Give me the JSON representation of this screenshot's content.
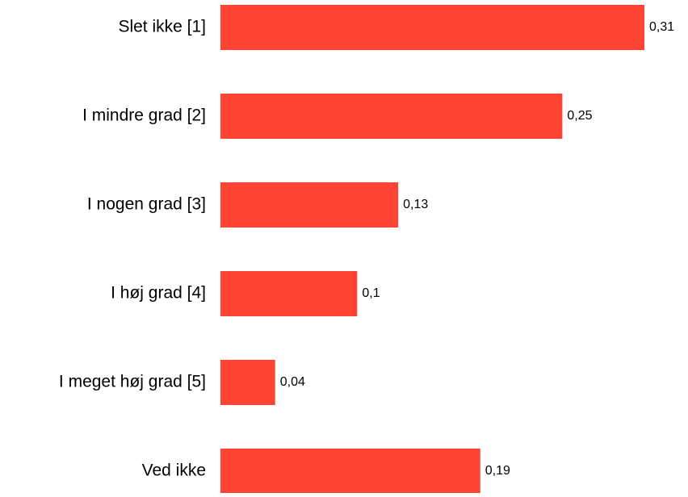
{
  "chart_data": {
    "type": "bar",
    "orientation": "horizontal",
    "categories": [
      "Slet ikke [1]",
      "I mindre grad [2]",
      "I nogen grad [3]",
      "I høj grad [4]",
      "I meget høj grad [5]",
      "Ved ikke"
    ],
    "values": [
      0.31,
      0.25,
      0.13,
      0.1,
      0.04,
      0.19
    ],
    "value_labels": [
      "0,31",
      "0,25",
      "0,13",
      "0,1",
      "0,04",
      "0,19"
    ],
    "color": "#ff4433"
  }
}
